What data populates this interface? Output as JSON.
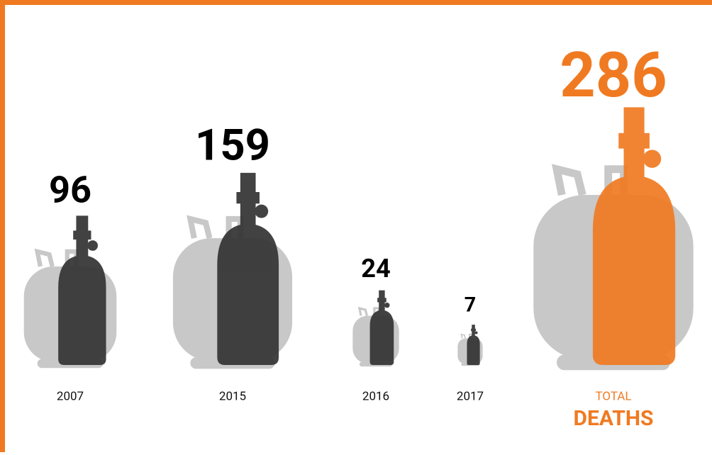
{
  "chart_data": {
    "type": "pictogram",
    "categories": [
      "2007",
      "2015",
      "2016",
      "2017"
    ],
    "values": [
      96,
      159,
      24,
      7
    ],
    "color": "#333333",
    "background_color": "#c8c8c8",
    "total": {
      "label": "TOTAL",
      "title": "DEATHS",
      "value": 286,
      "color": "#f07a21"
    }
  }
}
